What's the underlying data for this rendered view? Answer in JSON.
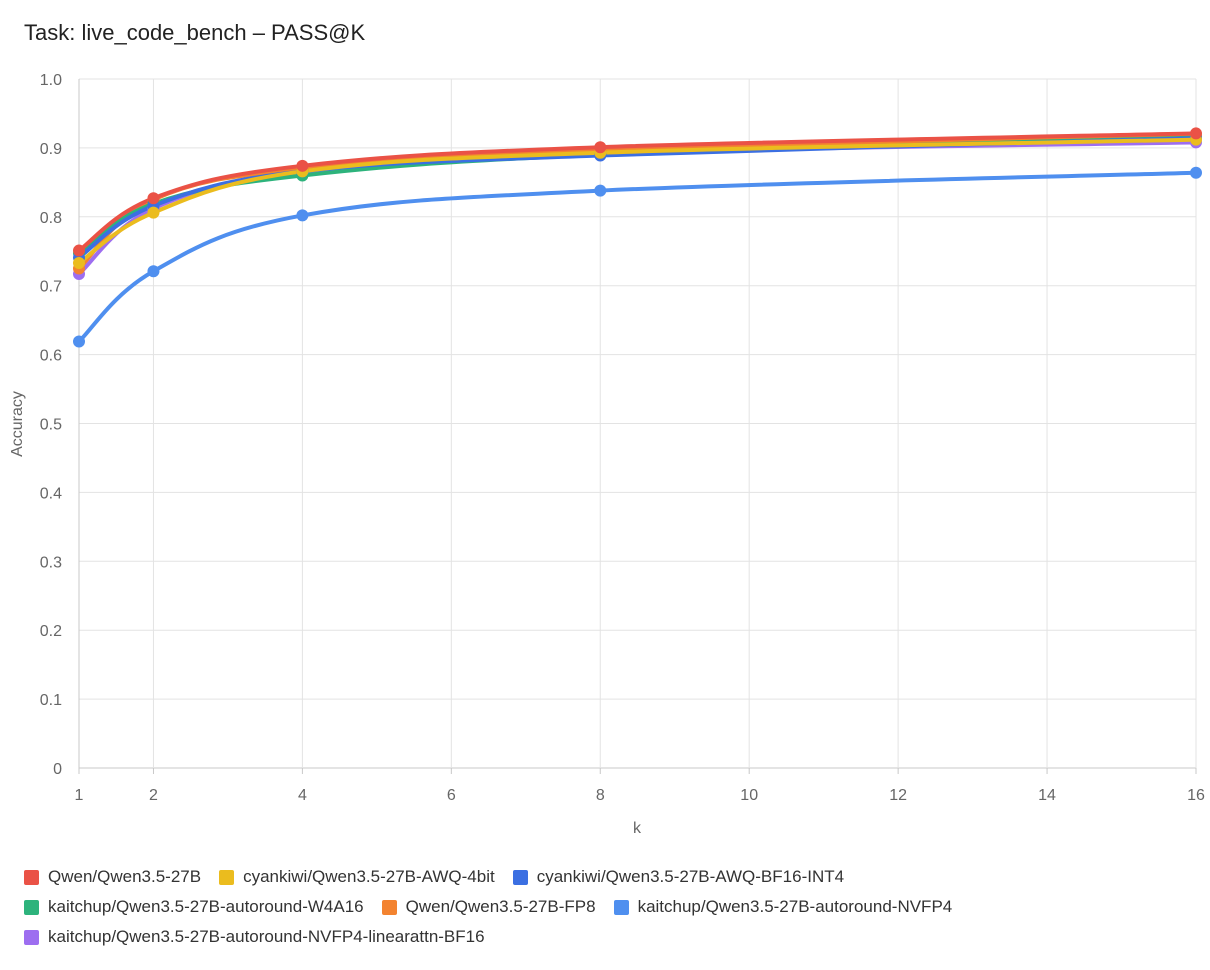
{
  "chart_data": {
    "type": "line",
    "title": "Task: live_code_bench – PASS@K",
    "xlabel": "k",
    "ylabel": "Accuracy",
    "xlim": [
      1,
      16
    ],
    "ylim": [
      0,
      1
    ],
    "x_ticks": [
      "1",
      "2",
      "4",
      "6",
      "8",
      "10",
      "12",
      "14",
      "16"
    ],
    "y_ticks": [
      "0",
      "0.1",
      "0.2",
      "0.3",
      "0.4",
      "0.5",
      "0.6",
      "0.7",
      "0.8",
      "0.9",
      "1.0"
    ],
    "x": [
      1,
      2,
      4,
      8,
      16
    ],
    "grid": true,
    "legend_position": "bottom",
    "series": [
      {
        "name": "Qwen/Qwen3.5-27B",
        "color": "#ea5246",
        "values": [
          0.751,
          0.827,
          0.874,
          0.901,
          0.921
        ]
      },
      {
        "name": "cyankiwi/Qwen3.5-27B-AWQ-4bit",
        "color": "#ebbc1e",
        "values": [
          0.733,
          0.806,
          0.866,
          0.893,
          0.912
        ]
      },
      {
        "name": "cyankiwi/Qwen3.5-27B-AWQ-BF16-INT4",
        "color": "#3b6fe2",
        "values": [
          0.741,
          0.816,
          0.866,
          0.889,
          0.914
        ]
      },
      {
        "name": "kaitchup/Qwen3.5-27B-autoround-W4A16",
        "color": "#2db37c",
        "values": [
          0.747,
          0.819,
          0.86,
          0.89,
          0.915
        ]
      },
      {
        "name": "Qwen/Qwen3.5-27B-FP8",
        "color": "#f38330",
        "values": [
          0.725,
          0.825,
          0.87,
          0.896,
          0.918
        ]
      },
      {
        "name": "kaitchup/Qwen3.5-27B-autoround-NVFP4",
        "color": "#4f8fef",
        "values": [
          0.619,
          0.721,
          0.802,
          0.838,
          0.864
        ]
      },
      {
        "name": "kaitchup/Qwen3.5-27B-autoround-NVFP4-linearattn-BF16",
        "color": "#9d6ef0",
        "values": [
          0.717,
          0.812,
          0.865,
          0.892,
          0.908
        ]
      }
    ]
  },
  "legend_rows": [
    [
      0,
      1,
      2
    ],
    [
      3,
      4,
      5
    ],
    [
      6
    ]
  ]
}
